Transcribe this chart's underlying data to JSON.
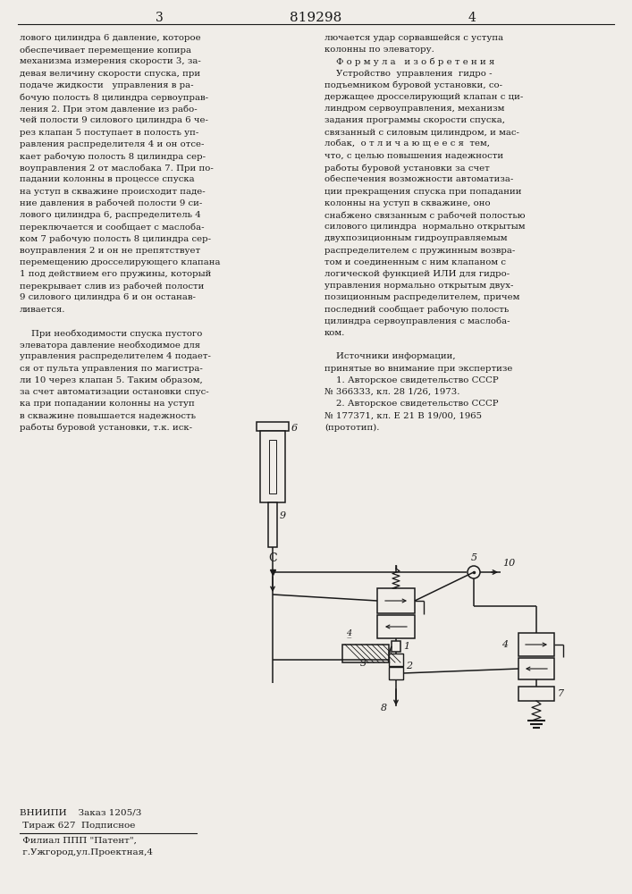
{
  "bg_color": "#f0ede8",
  "text_color": "#1a1a1a",
  "page_header": {
    "left_num": "3",
    "center_num": "819298",
    "right_num": "4"
  },
  "col_left_text": [
    "лового цилиндра 6 давление, которое",
    "обеспечивает перемещение копира",
    "механизма измерения скорости 3, за-",
    "девая величину скорости спуска, при",
    "подаче жидкости   управления в ра-",
    "бочую полость 8 цилиндра сервоуправ-",
    "ления 2. При этом давление из рабо-",
    "чей полости 9 силового цилиндра 6 че-",
    "рез клапан 5 поступает в полость уп-",
    "равления распределителя 4 и он отсе-",
    "кает рабочую полость 8 цилиндра сер-",
    "воуправления 2 от маслобака 7. При по-",
    "падании колонны в процессе спуска",
    "на уступ в скважине происходит паде-",
    "ние давления в рабочей полости 9 си-",
    "лового цилиндра 6, распределитель 4",
    "переключается и сообщает с маслоба-",
    "ком 7 рабочую полость 8 цилиндра сер-",
    "воуправления 2 и он не препятствует",
    "перемещению дросселирующего клапана",
    "1 под действием его пружины, который",
    "перекрывает слив из рабочей полости",
    "9 силового цилиндра 6 и он останав-",
    "ливается.",
    "",
    "    При необходимости спуска пустого",
    "элеватора давление необходимое для",
    "управления распределителем 4 подает-",
    "ся от пульта управления по магистра-",
    "ли 10 через клапан 5. Таким образом,",
    "за счет автоматизации остановки спус-",
    "ка при попадании колонны на уступ",
    "в скважине повышается надежность",
    "работы буровой установки, т.к. иск-"
  ],
  "col_right_text": [
    "лючается удар сорвавшейся с уступа",
    "колонны по элеватору.",
    "    Ф о р м у л а   и з о б р е т е н и я",
    "    Устройство  управления  гидро -",
    "подъемником буровой установки, со-",
    "держащее дросселирующий клапан с ци-",
    "линдром сервоуправления, механизм",
    "задания программы скорости спуска,",
    "связанный с силовым цилиндром, и мас-",
    "лобак,  о т л и ч а ю щ е е с я  тем,",
    "что, с целью повышения надежности",
    "работы буровой установки за счет",
    "обеспечения возможности автоматиза-",
    "ции прекращения спуска при попадании",
    "колонны на уступ в скважине, оно",
    "снабжено связанным с рабочей полостью",
    "силового цилиндра  нормально открытым",
    "двухпозиционным гидроуправляемым",
    "распределителем с пружинным возвра-",
    "том и соединенным с ним клапаном с",
    "логической функцией ИЛИ для гидро-",
    "управления нормально открытым двух-",
    "позиционным распределителем, причем",
    "последний сообщает рабочую полость",
    "цилиндра сервоуправления с маслоба-",
    "ком.",
    "",
    "    Источники информации,",
    "принятые во внимание при экспертизе",
    "    1. Авторское свидетельство СССР",
    "№ 366333, кл. 28 1/26, 1973.",
    "    2. Авторское свидетельство СССР",
    "№ 177371, кл. Е 21 В 19/00, 1965",
    "(прототип)."
  ],
  "footer_text": [
    "ВНИИПИ    Заказ 1205/3",
    " Тираж 627  Подписное",
    " Филиал ППП \"Патент\",",
    " г.Ужгород,ул.Проектная,4"
  ]
}
